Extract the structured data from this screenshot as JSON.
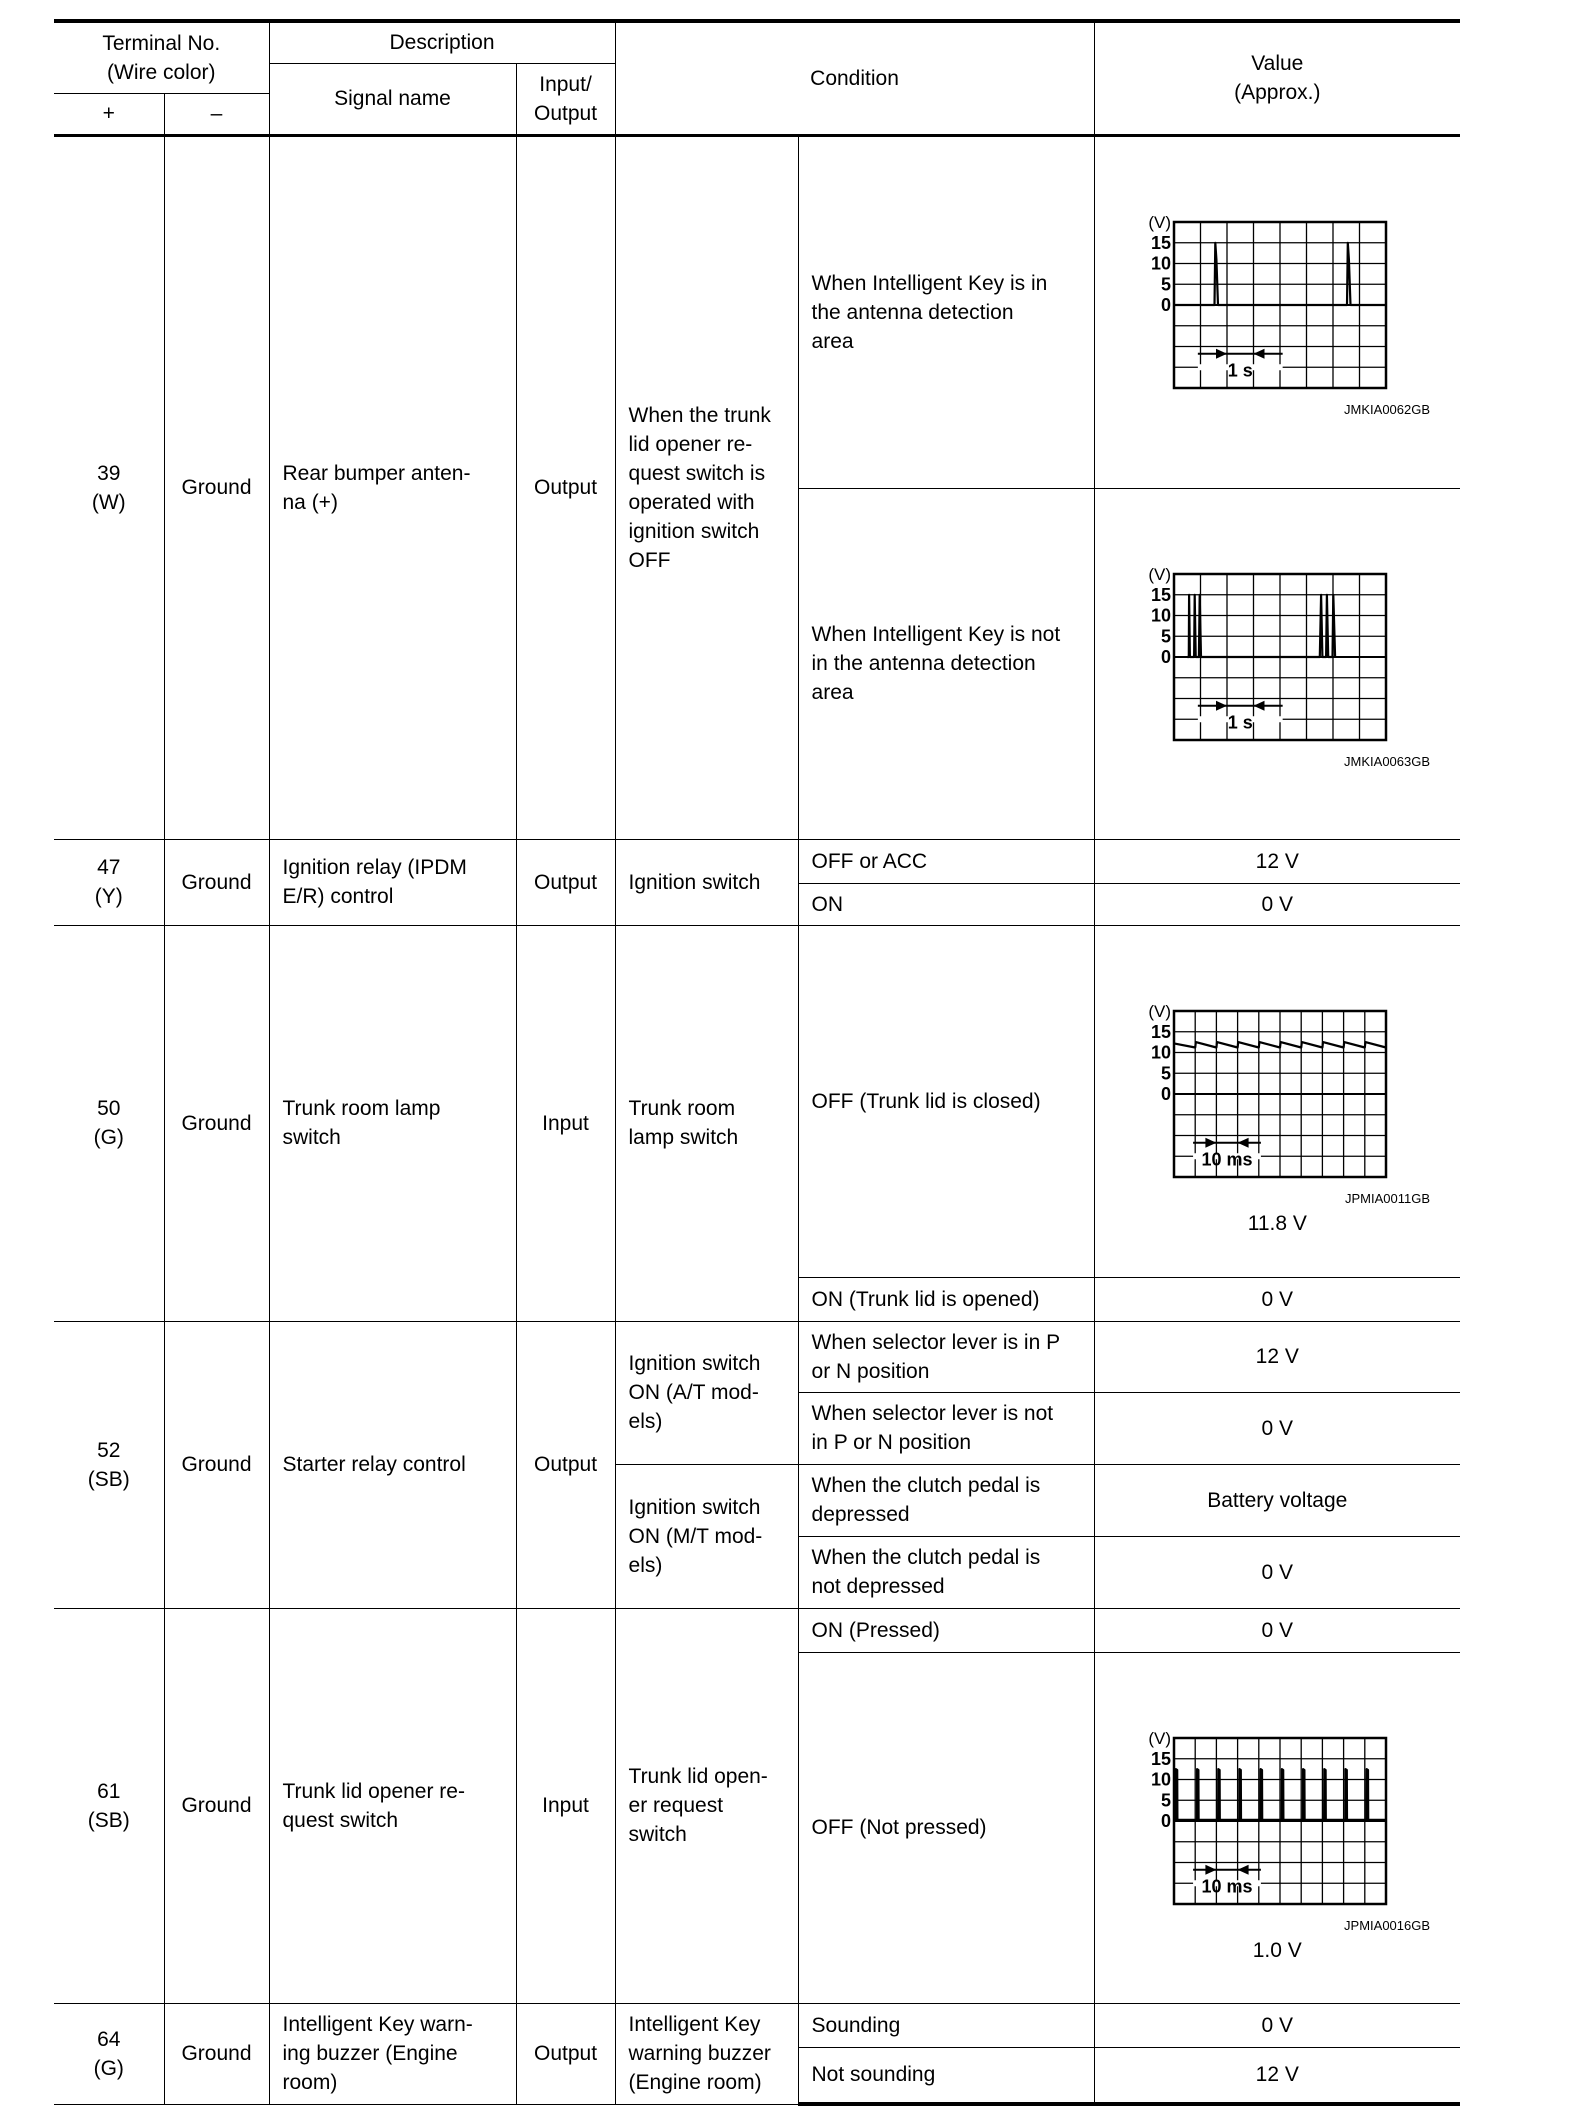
{
  "header": {
    "terminal_no": "Terminal No.\n(Wire color)",
    "plus": "+",
    "minus": "–",
    "description": "Description",
    "signal_name": "Signal name",
    "input_output": "Input/\nOutput",
    "condition": "Condition",
    "value": "Value\n(Approx.)"
  },
  "rows": [
    {
      "terminal": "39\n(W)",
      "ground": "Ground",
      "signal": "Rear bumper anten-\nna (+)",
      "io": "Output",
      "condition": "When the trunk\nlid opener re-\nquest switch is\noperated with\nignition switch\nOFF",
      "sub": [
        {
          "label": "When Intelligent Key is in\nthe antenna detection\narea",
          "chart": 0
        },
        {
          "label": "When Intelligent Key is not\nin the antenna detection\narea",
          "chart": 1
        }
      ]
    },
    {
      "terminal": "47\n(Y)",
      "ground": "Ground",
      "signal": "Ignition relay (IPDM\nE/R) control",
      "io": "Output",
      "condition": "Ignition switch",
      "sub": [
        {
          "label": "OFF or ACC",
          "value": "12 V"
        },
        {
          "label": "ON",
          "value": "0 V"
        }
      ]
    },
    {
      "terminal": "50\n(G)",
      "ground": "Ground",
      "signal": "Trunk room lamp\nswitch",
      "io": "Input",
      "condition": "Trunk room\nlamp switch",
      "sub": [
        {
          "label": "OFF (Trunk lid is closed)",
          "chart": 2,
          "value": "11.8 V"
        },
        {
          "label": "ON (Trunk lid is opened)",
          "value": "0 V"
        }
      ]
    },
    {
      "terminal": "52\n(SB)",
      "ground": "Ground",
      "signal": "Starter relay control",
      "io": "Output",
      "condition_groups": [
        "Ignition switch\nON (A/T mod-\nels)",
        "Ignition switch\nON (M/T mod-\nels)"
      ],
      "sub": [
        {
          "label": "When selector lever is in P\nor N position",
          "value": "12 V"
        },
        {
          "label": "When selector lever is not\nin P or N position",
          "value": "0 V"
        },
        {
          "label": "When the clutch pedal is\ndepressed",
          "value": "Battery voltage"
        },
        {
          "label": "When the clutch pedal is\nnot depressed",
          "value": "0 V"
        }
      ]
    },
    {
      "terminal": "61\n(SB)",
      "ground": "Ground",
      "signal": "Trunk lid opener re-\nquest switch",
      "io": "Input",
      "condition": "Trunk lid open-\ner request\nswitch",
      "sub": [
        {
          "label": "ON (Pressed)",
          "value": "0 V"
        },
        {
          "label": "OFF (Not pressed)",
          "chart": 3,
          "value": "1.0 V"
        }
      ]
    },
    {
      "terminal": "64\n(G)",
      "ground": "Ground",
      "signal": "Intelligent Key warn-\ning buzzer (Engine\nroom)",
      "io": "Output",
      "condition": "Intelligent Key\nwarning buzzer\n(Engine room)",
      "sub": [
        {
          "label": "Sounding",
          "value": "0 V"
        },
        {
          "label": "Not sounding",
          "value": "12 V"
        }
      ]
    }
  ],
  "chart_data": [
    {
      "type": "line",
      "code": "JMKIA0062GB",
      "ylabel": "(V)",
      "yticks": [
        0,
        5,
        10,
        15
      ],
      "ylim": [
        -20,
        20
      ],
      "x_unit": "s",
      "xlim": [
        0,
        8
      ],
      "x_divisions": 8,
      "scale_label": "1 s",
      "grid": true,
      "series": [
        {
          "points": [
            [
              0,
              0
            ],
            [
              1.53,
              0
            ],
            [
              1.56,
              15
            ],
            [
              1.6,
              11
            ],
            [
              1.66,
              0
            ],
            [
              6.53,
              0
            ],
            [
              6.56,
              15
            ],
            [
              6.6,
              11
            ],
            [
              6.66,
              0
            ],
            [
              8,
              0
            ]
          ]
        }
      ]
    },
    {
      "type": "line",
      "code": "JMKIA0063GB",
      "ylabel": "(V)",
      "yticks": [
        0,
        5,
        10,
        15
      ],
      "ylim": [
        -20,
        20
      ],
      "x_unit": "s",
      "xlim": [
        0,
        8
      ],
      "x_divisions": 8,
      "scale_label": "1 s",
      "grid": true,
      "series": [
        {
          "points": [
            [
              0.5,
              0
            ],
            [
              0.56,
              0
            ],
            [
              0.57,
              15
            ],
            [
              0.6,
              0
            ],
            [
              0.76,
              0
            ],
            [
              0.78,
              15
            ],
            [
              0.82,
              0
            ],
            [
              0.94,
              0
            ],
            [
              0.97,
              15
            ],
            [
              1.02,
              0
            ],
            [
              5.5,
              0
            ],
            [
              5.55,
              15
            ],
            [
              5.6,
              0
            ],
            [
              5.74,
              0
            ],
            [
              5.77,
              15
            ],
            [
              5.82,
              0
            ],
            [
              5.98,
              0
            ],
            [
              6.01,
              15
            ],
            [
              6.08,
              0
            ]
          ]
        }
      ]
    },
    {
      "type": "line",
      "code": "JPMIA0011GB",
      "ylabel": "(V)",
      "yticks": [
        0,
        5,
        10,
        15
      ],
      "ylim": [
        -20,
        20
      ],
      "x_unit": "ms",
      "xlim": [
        0,
        100
      ],
      "x_divisions": 10,
      "scale_label": "10 ms",
      "grid": true,
      "series": [
        {
          "points": [
            [
              0,
              12.2
            ],
            [
              10,
              11.2
            ],
            [
              10.3,
              12.5
            ],
            [
              20,
              11.2
            ],
            [
              20.3,
              12.5
            ],
            [
              30,
              11.2
            ],
            [
              30.3,
              12.5
            ],
            [
              40,
              11.2
            ],
            [
              40.3,
              12.5
            ],
            [
              50,
              11.2
            ],
            [
              50.3,
              12.5
            ],
            [
              60,
              11.2
            ],
            [
              60.3,
              12.5
            ],
            [
              70,
              11.2
            ],
            [
              70.3,
              12.5
            ],
            [
              80,
              11.2
            ],
            [
              80.3,
              12.5
            ],
            [
              90,
              11.2
            ],
            [
              90.3,
              12.5
            ],
            [
              100,
              11.2
            ]
          ]
        }
      ]
    },
    {
      "type": "line",
      "code": "JPMIA0016GB",
      "ylabel": "(V)",
      "yticks": [
        0,
        5,
        10,
        15
      ],
      "ylim": [
        -20,
        20
      ],
      "x_unit": "ms",
      "xlim": [
        0,
        100
      ],
      "x_divisions": 10,
      "scale_label": "10 ms",
      "grid": true,
      "series": [
        {
          "points": [
            [
              0,
              0.3
            ],
            [
              0.8,
              0.3
            ],
            [
              0.9,
              12.5
            ],
            [
              1.5,
              12.3
            ],
            [
              1.6,
              0.3
            ],
            [
              10.8,
              0.3
            ],
            [
              10.9,
              12.5
            ],
            [
              11.5,
              12.3
            ],
            [
              11.6,
              0.3
            ],
            [
              20.8,
              0.3
            ],
            [
              20.9,
              12.5
            ],
            [
              21.5,
              12.3
            ],
            [
              21.6,
              0.3
            ],
            [
              30.8,
              0.3
            ],
            [
              30.9,
              12.5
            ],
            [
              31.5,
              12.3
            ],
            [
              31.6,
              0.3
            ],
            [
              40.8,
              0.3
            ],
            [
              40.9,
              12.5
            ],
            [
              41.5,
              12.3
            ],
            [
              41.6,
              0.3
            ],
            [
              50.8,
              0.3
            ],
            [
              50.9,
              12.5
            ],
            [
              51.5,
              12.3
            ],
            [
              51.6,
              0.3
            ],
            [
              60.8,
              0.3
            ],
            [
              60.9,
              12.5
            ],
            [
              61.5,
              12.3
            ],
            [
              61.6,
              0.3
            ],
            [
              70.8,
              0.3
            ],
            [
              70.9,
              12.5
            ],
            [
              71.5,
              12.3
            ],
            [
              71.6,
              0.3
            ],
            [
              80.8,
              0.3
            ],
            [
              80.9,
              12.5
            ],
            [
              81.5,
              12.3
            ],
            [
              81.6,
              0.3
            ],
            [
              90.8,
              0.3
            ],
            [
              90.9,
              12.5
            ],
            [
              91.5,
              12.3
            ],
            [
              91.6,
              0.3
            ],
            [
              100,
              0.3
            ]
          ]
        }
      ]
    }
  ]
}
